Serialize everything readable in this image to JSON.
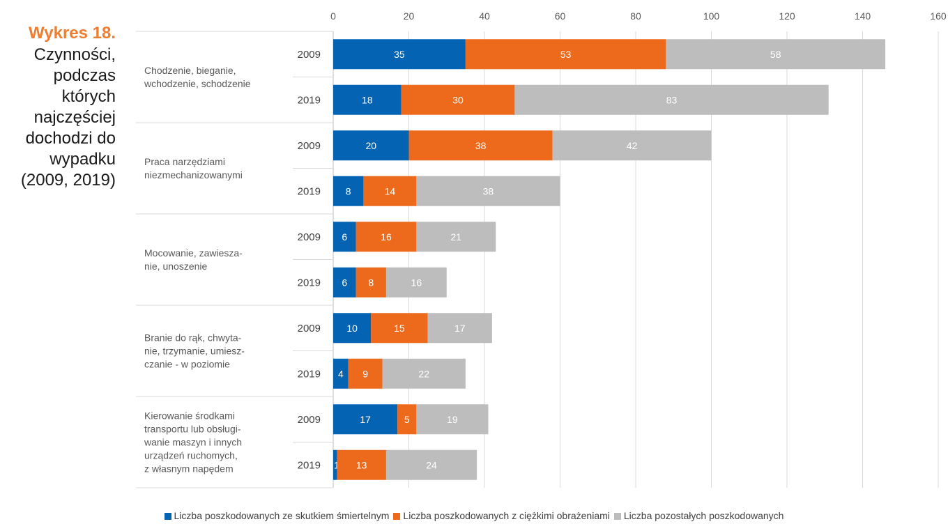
{
  "caption": {
    "number": "Wykres 18.",
    "title": "Czynności,\npodczas\nktórych\nnajczęściej\ndochodzi do\nwypadku\n(2009, 2019)"
  },
  "chart_data": {
    "type": "bar",
    "orientation": "horizontal",
    "stacked": true,
    "xlim": [
      0,
      160
    ],
    "x_ticks": [
      0,
      20,
      40,
      60,
      80,
      100,
      120,
      140,
      160
    ],
    "grid": true,
    "legend_position": "bottom",
    "groups": [
      {
        "category": "Chodzenie, bieganie, wchodzenie, schodzenie",
        "category_lines": [
          "Chodzenie, bieganie,",
          "wchodzenie, schodzenie"
        ],
        "bars": [
          {
            "year": "2009",
            "values": [
              35,
              53,
              58
            ]
          },
          {
            "year": "2019",
            "values": [
              18,
              30,
              83
            ]
          }
        ]
      },
      {
        "category": "Praca narzędziami niezmechanizowanymi",
        "category_lines": [
          "Praca narzędziami",
          "niezmechanizowanymi"
        ],
        "bars": [
          {
            "year": "2009",
            "values": [
              20,
              38,
              42
            ]
          },
          {
            "year": "2019",
            "values": [
              8,
              14,
              38
            ]
          }
        ]
      },
      {
        "category": "Mocowanie, zawieszanie, unoszenie",
        "category_lines": [
          "Mocowanie, zawiesza-",
          "nie, unoszenie"
        ],
        "bars": [
          {
            "year": "2009",
            "values": [
              6,
              16,
              21
            ]
          },
          {
            "year": "2019",
            "values": [
              6,
              8,
              16
            ]
          }
        ]
      },
      {
        "category": "Branie do rąk, chwytanie, trzymanie, umieszczanie - w poziomie",
        "category_lines": [
          "Branie do rąk, chwyta-",
          "nie, trzymanie, umiesz-",
          "czanie - w poziomie"
        ],
        "bars": [
          {
            "year": "2009",
            "values": [
              10,
              15,
              17
            ]
          },
          {
            "year": "2019",
            "values": [
              4,
              9,
              22
            ]
          }
        ]
      },
      {
        "category": "Kierowanie środkami transportu lub obsługiwanie maszyn i innych urządzeń ruchomych, z własnym napędem",
        "category_lines": [
          "Kierowanie środkami",
          "transportu lub obsługi-",
          "wanie maszyn i innych",
          "urządzeń ruchomych,",
          "z własnym napędem"
        ],
        "bars": [
          {
            "year": "2009",
            "values": [
              17,
              5,
              19
            ]
          },
          {
            "year": "2019",
            "values": [
              1,
              13,
              24
            ]
          }
        ]
      }
    ],
    "series": [
      {
        "name": "Liczba poszkodowanych ze skutkiem śmiertelnym",
        "color": "#0563B4"
      },
      {
        "name": "Liczba poszkodowanych z ciężkimi obrażeniami",
        "color": "#ED6A1C"
      },
      {
        "name": "Liczba pozostałych poszkodowanych",
        "color": "#BDBDBD"
      }
    ]
  }
}
